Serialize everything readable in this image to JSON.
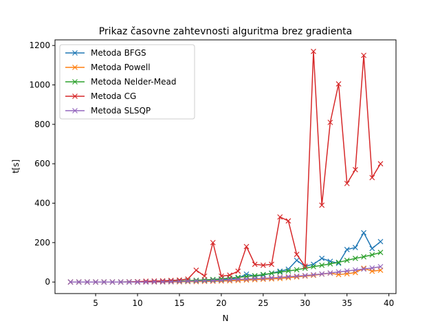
{
  "chart_data": {
    "type": "line",
    "title": "Prikaz časovne zahtevnosti alguritma brez gradienta",
    "xlabel": "N",
    "ylabel": "t[s]",
    "xlim": [
      0.15,
      40.85
    ],
    "ylim": [
      -58.5,
      1228.5
    ],
    "xticks": [
      5,
      10,
      15,
      20,
      25,
      30,
      35,
      40
    ],
    "yticks": [
      0,
      200,
      400,
      600,
      800,
      1000,
      1200
    ],
    "grid": false,
    "legend_position": "upper-left",
    "marker": "x",
    "x": [
      2,
      3,
      4,
      5,
      6,
      7,
      8,
      9,
      10,
      11,
      12,
      13,
      14,
      15,
      16,
      17,
      18,
      19,
      20,
      21,
      22,
      23,
      24,
      25,
      26,
      27,
      28,
      29,
      30,
      31,
      32,
      33,
      34,
      35,
      36,
      37,
      38,
      39
    ],
    "series": [
      {
        "name": "Metoda BFGS",
        "color": "#1f77b4",
        "values": [
          0,
          0,
          0,
          0,
          0,
          0,
          0,
          0,
          0,
          1,
          1,
          1,
          2,
          3,
          4,
          6,
          8,
          10,
          12,
          15,
          20,
          40,
          30,
          35,
          45,
          55,
          65,
          110,
          80,
          90,
          120,
          105,
          95,
          165,
          175,
          250,
          170,
          205
        ]
      },
      {
        "name": "Metoda Powell",
        "color": "#ff7f0e",
        "values": [
          0,
          0,
          0,
          0,
          0,
          0,
          0,
          0,
          0,
          0,
          0,
          0,
          1,
          1,
          2,
          2,
          3,
          4,
          5,
          6,
          8,
          10,
          12,
          14,
          16,
          18,
          22,
          26,
          30,
          34,
          40,
          45,
          38,
          42,
          48,
          70,
          55,
          60
        ]
      },
      {
        "name": "Metoda Nelder-Mead",
        "color": "#2ca02c",
        "values": [
          0,
          0,
          0,
          0,
          0,
          0,
          0,
          1,
          1,
          2,
          2,
          3,
          4,
          5,
          7,
          9,
          11,
          13,
          16,
          20,
          24,
          28,
          32,
          38,
          44,
          50,
          56,
          62,
          70,
          78,
          85,
          92,
          100,
          110,
          120,
          128,
          138,
          150
        ]
      },
      {
        "name": "Metoda CG",
        "color": "#d62728",
        "values": [
          0,
          0,
          0,
          0,
          0,
          0,
          0,
          1,
          2,
          4,
          5,
          6,
          8,
          10,
          15,
          60,
          30,
          200,
          30,
          35,
          55,
          180,
          90,
          85,
          90,
          330,
          310,
          140,
          80,
          1170,
          390,
          810,
          1005,
          500,
          570,
          1150,
          530,
          600
        ]
      },
      {
        "name": "Metoda SLSQP",
        "color": "#9467bd",
        "values": [
          0,
          0,
          0,
          0,
          0,
          0,
          0,
          0,
          0,
          0,
          1,
          1,
          2,
          3,
          4,
          5,
          6,
          7,
          9,
          11,
          13,
          15,
          17,
          19,
          21,
          24,
          27,
          30,
          33,
          37,
          41,
          46,
          51,
          56,
          61,
          66,
          71,
          78
        ]
      }
    ]
  }
}
